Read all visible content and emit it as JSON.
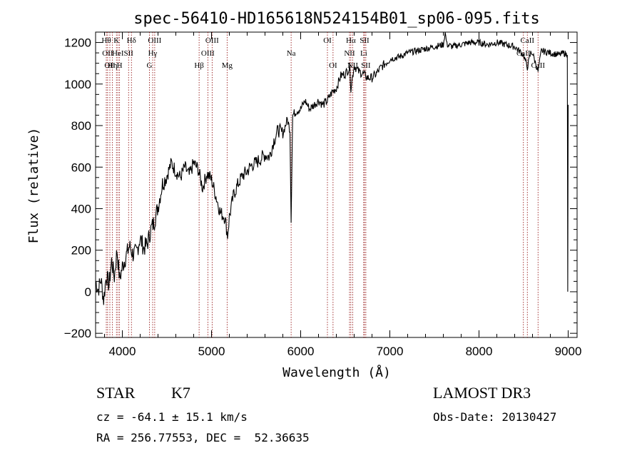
{
  "chart_data": {
    "type": "line",
    "title": "spec-56410-HD165618N524154B01_sp06-095.fits",
    "xlabel": "Wavelength (Å)",
    "ylabel": "Flux (relative)",
    "xlim": [
      3700,
      9100
    ],
    "ylim": [
      -220,
      1250
    ],
    "xticks": [
      4000,
      5000,
      6000,
      7000,
      8000,
      9000
    ],
    "yticks": [
      -200,
      0,
      200,
      400,
      600,
      800,
      1000,
      1200
    ],
    "series": [
      {
        "name": "flux",
        "x": [
          3700,
          3730,
          3760,
          3790,
          3820,
          3850,
          3880,
          3910,
          3940,
          3970,
          4000,
          4040,
          4080,
          4120,
          4160,
          4200,
          4240,
          4280,
          4320,
          4360,
          4400,
          4450,
          4500,
          4550,
          4600,
          4650,
          4700,
          4750,
          4800,
          4850,
          4900,
          4950,
          5000,
          5050,
          5100,
          5150,
          5180,
          5200,
          5250,
          5300,
          5350,
          5400,
          5450,
          5500,
          5550,
          5600,
          5650,
          5700,
          5750,
          5800,
          5850,
          5880,
          5893,
          5910,
          5950,
          6000,
          6050,
          6100,
          6150,
          6200,
          6250,
          6300,
          6350,
          6400,
          6450,
          6500,
          6550,
          6563,
          6600,
          6650,
          6700,
          6750,
          6800,
          6850,
          6900,
          6950,
          7000,
          7100,
          7200,
          7300,
          7400,
          7500,
          7600,
          7620,
          7640,
          7700,
          7800,
          7900,
          8000,
          8100,
          8200,
          8300,
          8400,
          8450,
          8500,
          8542,
          8580,
          8600,
          8662,
          8700,
          8800,
          8900,
          8950,
          8990,
          8995,
          9000
        ],
        "y": [
          50,
          10,
          60,
          -40,
          80,
          30,
          150,
          70,
          200,
          60,
          120,
          170,
          220,
          180,
          190,
          260,
          210,
          230,
          300,
          340,
          410,
          520,
          560,
          620,
          580,
          550,
          600,
          560,
          620,
          590,
          500,
          570,
          540,
          460,
          380,
          360,
          270,
          360,
          470,
          520,
          560,
          580,
          610,
          620,
          640,
          660,
          650,
          730,
          780,
          760,
          830,
          780,
          340,
          850,
          870,
          880,
          920,
          880,
          900,
          920,
          900,
          920,
          960,
          980,
          1040,
          1050,
          1080,
          980,
          1090,
          1060,
          1050,
          1030,
          1030,
          1050,
          1080,
          1100,
          1120,
          1130,
          1150,
          1160,
          1170,
          1180,
          1190,
          1250,
          1190,
          1180,
          1190,
          1200,
          1200,
          1190,
          1200,
          1190,
          1180,
          1160,
          1140,
          1080,
          1150,
          1150,
          1060,
          1160,
          1150,
          1140,
          1150,
          1140,
          0,
          900
        ]
      }
    ],
    "lines": [
      {
        "wl": 3820,
        "label": "Hθ",
        "row": 0
      },
      {
        "wl": 3835,
        "label": "OII",
        "row": 1
      },
      {
        "wl": 3860,
        "label": "OII",
        "row": 2
      },
      {
        "wl": 3889,
        "label": "Hη",
        "row": 2
      },
      {
        "wl": 3934,
        "label": "K",
        "row": 0
      },
      {
        "wl": 3969,
        "label": "H",
        "row": 2
      },
      {
        "wl": 3950,
        "label": "HeI",
        "row": 1
      },
      {
        "wl": 4070,
        "label": "SII",
        "row": 1
      },
      {
        "wl": 4102,
        "label": "Hδ",
        "row": 0
      },
      {
        "wl": 4304,
        "label": "G",
        "row": 2
      },
      {
        "wl": 4340,
        "label": "Hγ",
        "row": 1
      },
      {
        "wl": 4363,
        "label": "OIII",
        "row": 0
      },
      {
        "wl": 4861,
        "label": "Hβ",
        "row": 2
      },
      {
        "wl": 4959,
        "label": "OIII",
        "row": 1
      },
      {
        "wl": 5007,
        "label": "OIII",
        "row": 0
      },
      {
        "wl": 5175,
        "label": "Mg",
        "row": 2
      },
      {
        "wl": 5893,
        "label": "Na",
        "row": 1
      },
      {
        "wl": 6300,
        "label": "OI",
        "row": 0
      },
      {
        "wl": 6363,
        "label": "OI",
        "row": 2
      },
      {
        "wl": 6548,
        "label": "NII",
        "row": 1
      },
      {
        "wl": 6563,
        "label": "Hα",
        "row": 0
      },
      {
        "wl": 6583,
        "label": "NII",
        "row": 2
      },
      {
        "wl": 6707,
        "label": "Li",
        "row": 1
      },
      {
        "wl": 6716,
        "label": "SII",
        "row": 0
      },
      {
        "wl": 6731,
        "label": "SII",
        "row": 2
      },
      {
        "wl": 8498,
        "label": "CaII",
        "row": 1
      },
      {
        "wl": 8542,
        "label": "CaII",
        "row": 0
      },
      {
        "wl": 8662,
        "label": "CaII",
        "row": 2
      }
    ],
    "line_color": "#8b0000",
    "series_color": "#000000"
  },
  "info": {
    "object_class": "STAR",
    "subclass": "K7",
    "survey": "LAMOST DR3",
    "redshift": "cz = -64.1 ± 15.1 km/s",
    "obs_date": "Obs-Date: 20130427",
    "coords": "RA = 256.77553, DEC =  52.36635"
  }
}
